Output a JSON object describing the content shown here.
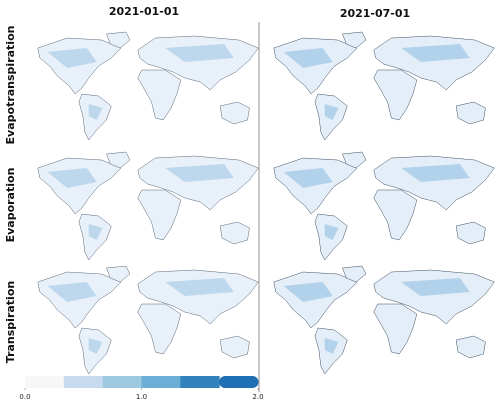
{
  "columns": [
    "2021-01-01",
    "2021-07-01"
  ],
  "rows": [
    "Evapotranspiration",
    "Evaporation",
    "Transpiration"
  ],
  "colorbar": {
    "range": [
      0,
      2
    ],
    "ticks": [
      {
        "value": 0,
        "label": "0.0"
      },
      {
        "value": 1,
        "label": "1.0"
      },
      {
        "value": 2,
        "label": "2.0"
      }
    ],
    "colors": [
      "#f7f7f7",
      "#c6dbef",
      "#9ecae1",
      "#6baed6",
      "#3182bd",
      "#1f6fb4"
    ]
  }
}
